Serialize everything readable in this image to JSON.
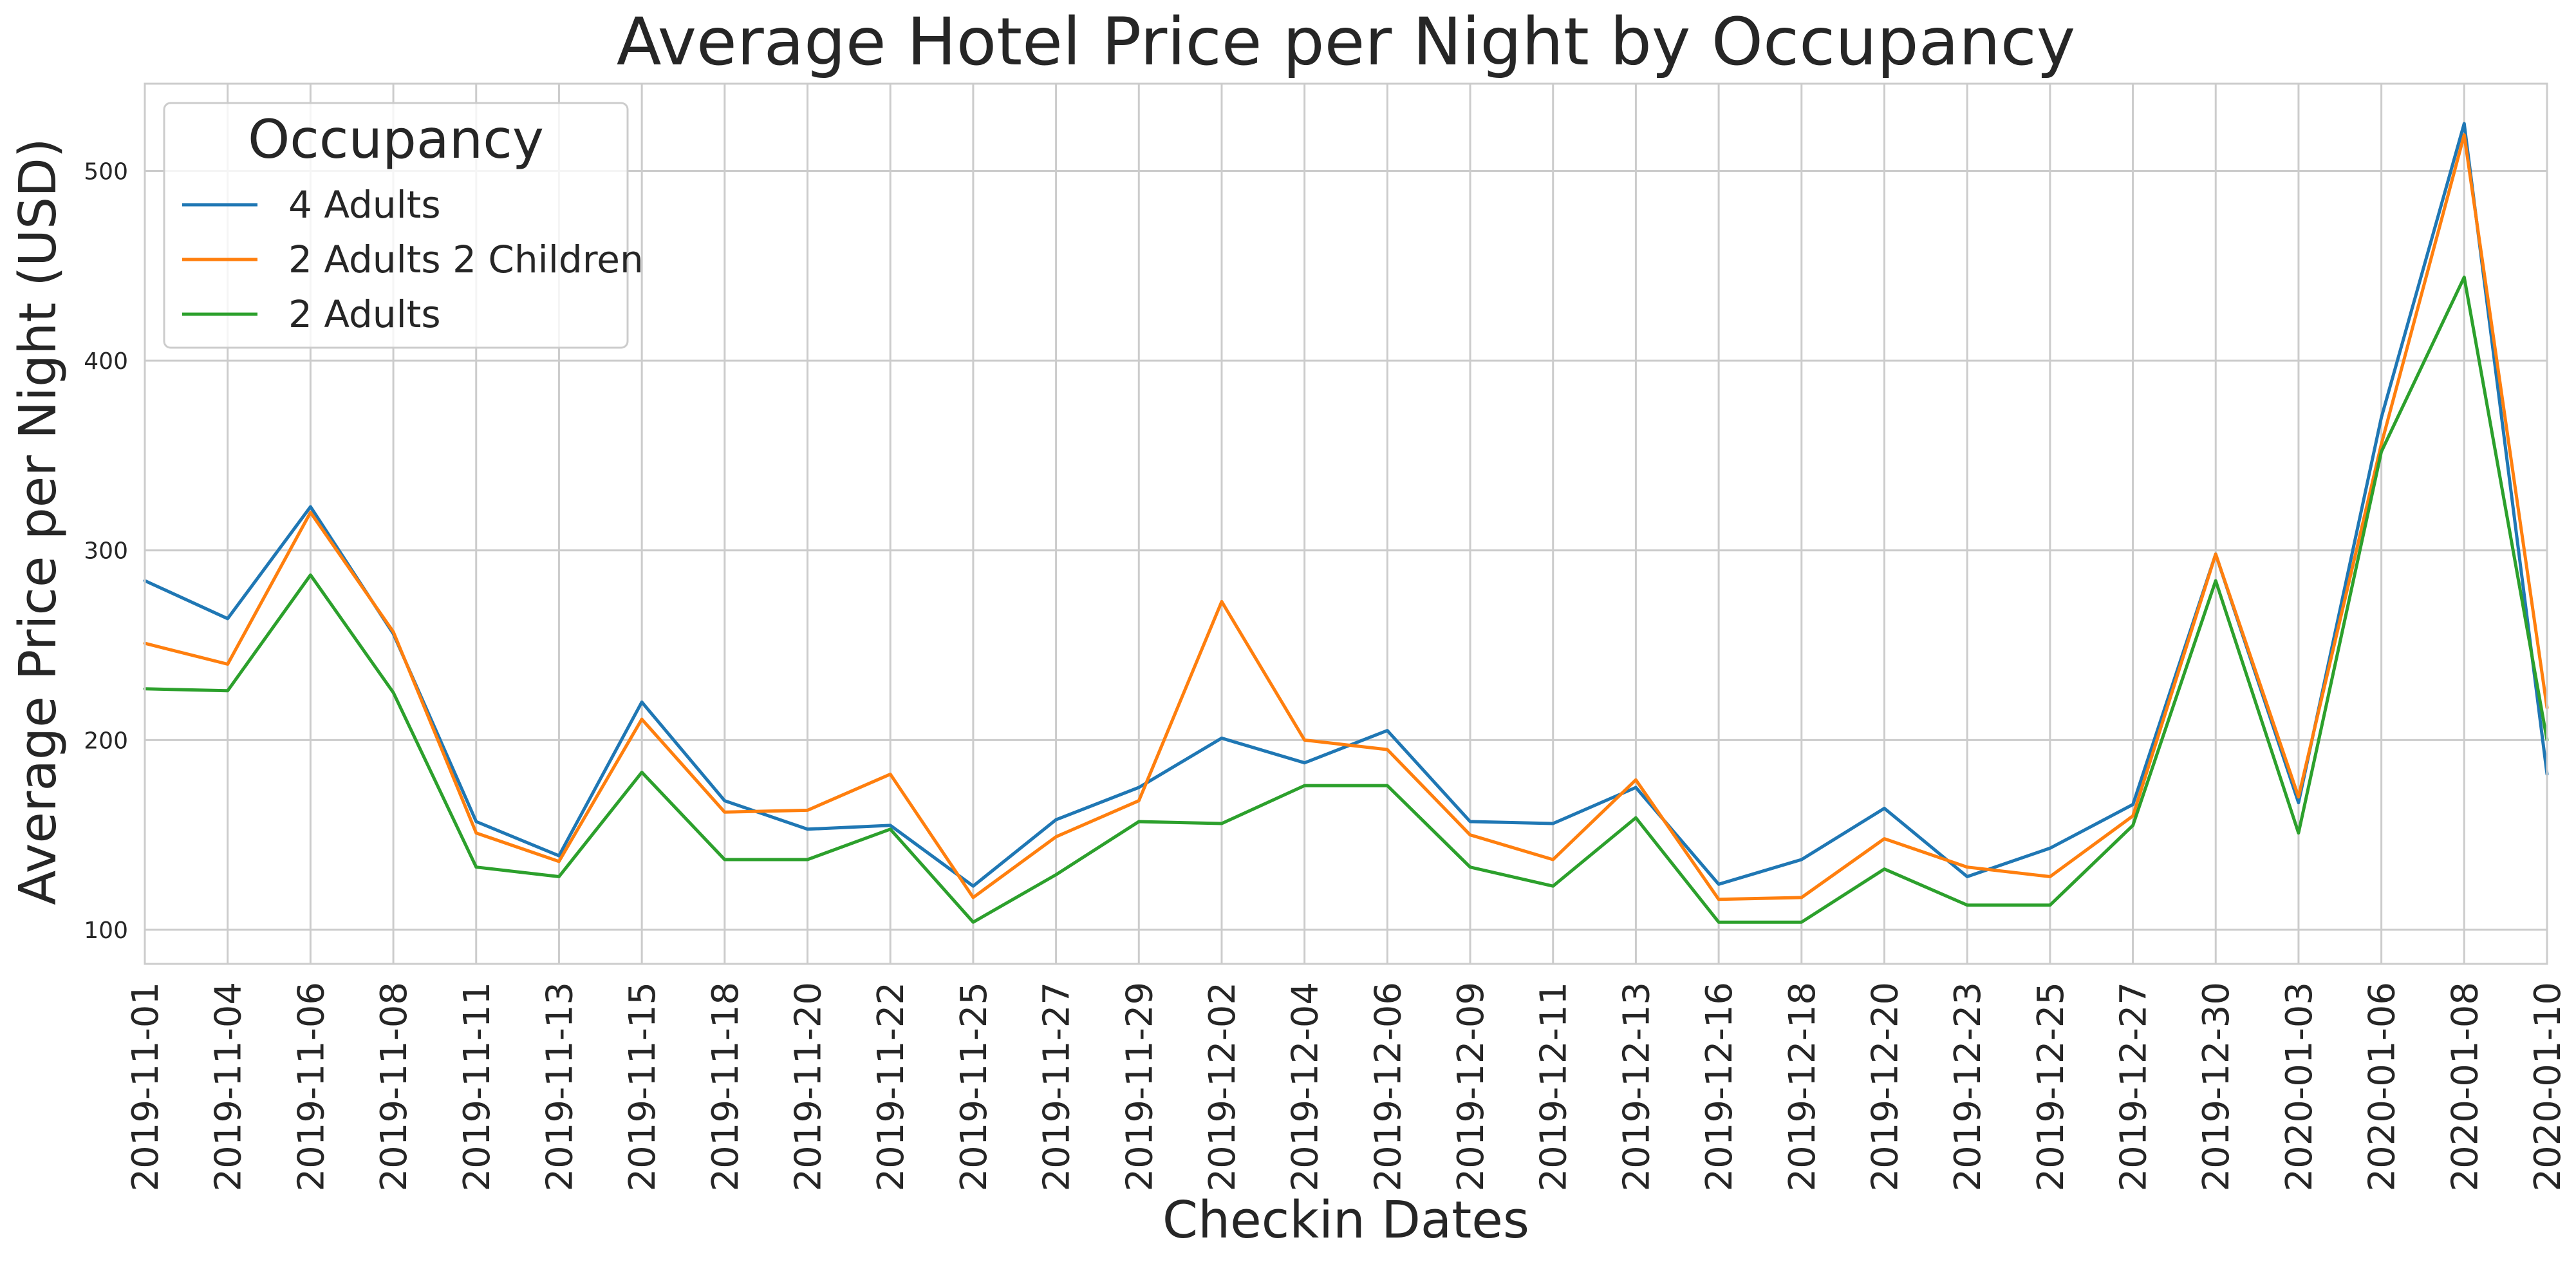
{
  "chart_data": {
    "type": "line",
    "title": "Average Hotel Price per Night by Occupancy",
    "xlabel": "Checkin Dates",
    "ylabel": "Average Price per Night (USD)",
    "ylim": [
      82,
      546
    ],
    "yticks": [
      100,
      200,
      300,
      400,
      500
    ],
    "grid": true,
    "legend": {
      "title": "Occupancy",
      "position": "top-left"
    },
    "x": [
      "2019-11-01",
      "2019-11-04",
      "2019-11-06",
      "2019-11-08",
      "2019-11-11",
      "2019-11-13",
      "2019-11-15",
      "2019-11-18",
      "2019-11-20",
      "2019-11-22",
      "2019-11-25",
      "2019-11-27",
      "2019-11-29",
      "2019-12-02",
      "2019-12-04",
      "2019-12-06",
      "2019-12-09",
      "2019-12-11",
      "2019-12-13",
      "2019-12-16",
      "2019-12-18",
      "2019-12-20",
      "2019-12-23",
      "2019-12-25",
      "2019-12-27",
      "2019-12-30",
      "2020-01-03",
      "2020-01-06",
      "2020-01-08",
      "2020-01-10"
    ],
    "series": [
      {
        "name": "4 Adults",
        "color": "#1f77b4",
        "values": [
          284,
          264,
          323,
          256,
          157,
          139,
          220,
          168,
          153,
          155,
          123,
          158,
          175,
          201,
          188,
          205,
          157,
          156,
          175,
          124,
          137,
          164,
          128,
          143,
          166,
          298,
          167,
          370,
          525,
          182
        ]
      },
      {
        "name": "2 Adults 2 Children",
        "color": "#ff7f0e",
        "values": [
          251,
          240,
          320,
          257,
          151,
          136,
          211,
          162,
          163,
          182,
          117,
          149,
          168,
          273,
          200,
          195,
          150,
          137,
          179,
          116,
          117,
          148,
          133,
          128,
          160,
          298,
          170,
          356,
          519,
          217
        ]
      },
      {
        "name": "2 Adults",
        "color": "#2ca02c",
        "values": [
          227,
          226,
          287,
          225,
          133,
          128,
          183,
          137,
          137,
          153,
          104,
          129,
          157,
          156,
          176,
          176,
          133,
          123,
          159,
          104,
          104,
          132,
          113,
          113,
          155,
          284,
          151,
          352,
          444,
          200
        ]
      }
    ]
  }
}
